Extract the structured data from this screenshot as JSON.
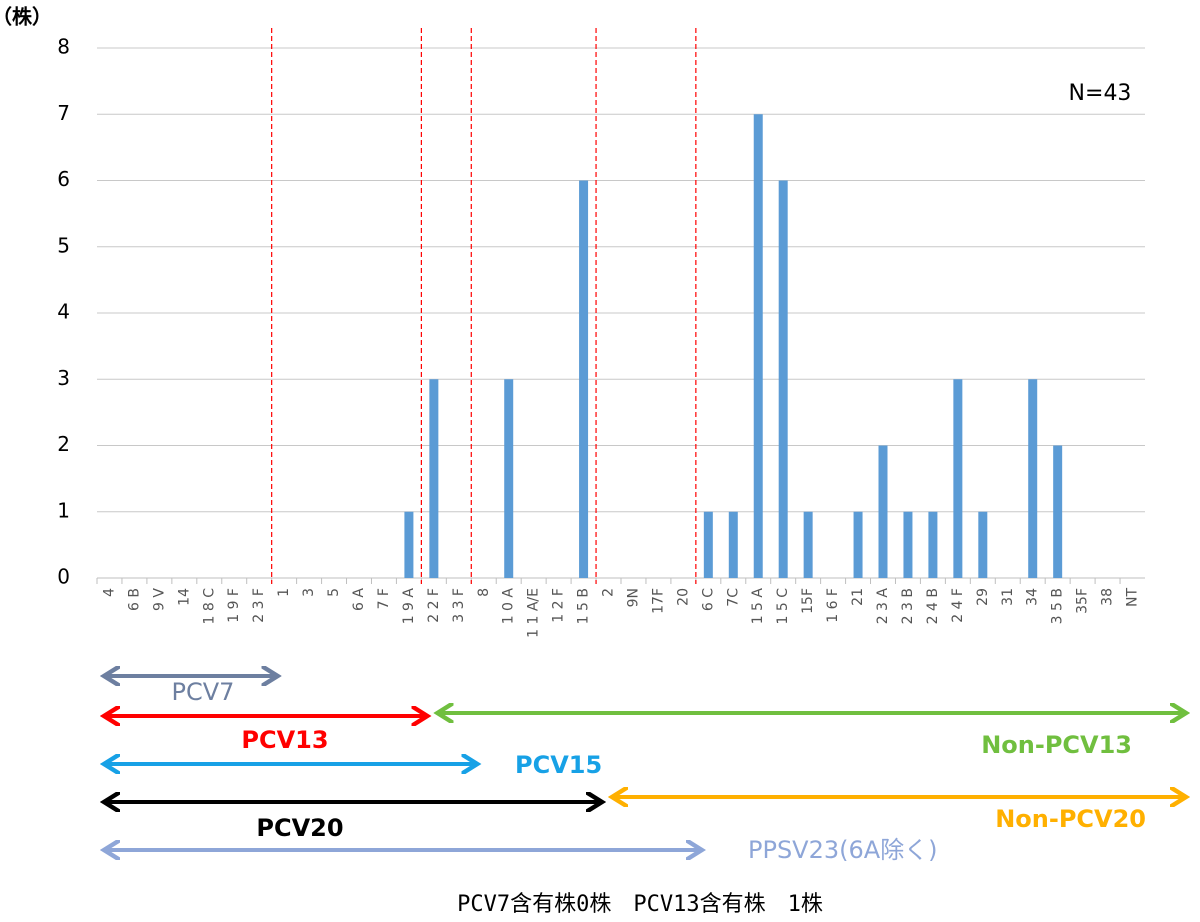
{
  "chart_data": {
    "type": "bar",
    "y_label": "（株）",
    "annotation": "N=43",
    "footer": "PCV7含有株0株　PCV13含有株　1株",
    "categories": [
      "4",
      "6 B",
      "9 V",
      "14",
      "1 8 C",
      "1 9 F",
      "2 3 F",
      "1",
      "3",
      "5",
      "6 A",
      "7 F",
      "1 9 A",
      "2 2 F",
      "3 3 F",
      "8",
      "1 0 A",
      "1 1 A/E",
      "1 2 F",
      "1 5 B",
      "2",
      "9N",
      "17F",
      "20",
      "6 C",
      "7C",
      "1 5 A",
      "1 5 C",
      "15F",
      "1 6 F",
      "21",
      "2 3 A",
      "2 3 B",
      "2 4 B",
      "2 4 F",
      "29",
      "31",
      "34",
      "3 5 B",
      "35F",
      "38",
      "NT"
    ],
    "values": [
      0,
      0,
      0,
      0,
      0,
      0,
      0,
      0,
      0,
      0,
      0,
      0,
      1,
      3,
      0,
      0,
      3,
      0,
      0,
      6,
      0,
      0,
      0,
      0,
      1,
      1,
      7,
      6,
      1,
      0,
      1,
      2,
      1,
      1,
      3,
      1,
      0,
      3,
      2,
      0,
      0,
      0
    ],
    "color": "#5b9bd5",
    "ylim": [
      0,
      8
    ],
    "yticks": [
      0,
      1,
      2,
      3,
      4,
      5,
      6,
      7,
      8
    ],
    "grid": true,
    "ranges": [
      {
        "label": "PCV7",
        "color": "#6d7fa0",
        "from": "4",
        "to": "2 3 F",
        "divider": true
      },
      {
        "label": "PCV13",
        "color": "#ff0000",
        "from": "4",
        "to": "1 9 A",
        "divider": true
      },
      {
        "label": "Non-PCV13",
        "color": "#70bf3f",
        "from": "2 2 F",
        "to": "NT",
        "divider": false
      },
      {
        "label": "PCV15",
        "color": "#17a1e6",
        "from": "4",
        "to": "3 3 F",
        "divider": true
      },
      {
        "label": "PCV20",
        "color": "#000000",
        "from": "4",
        "to": "1 5 B",
        "divider": true
      },
      {
        "label": "Non-PCV20",
        "color": "#ffb000",
        "from": "2",
        "to": "NT",
        "divider": false
      },
      {
        "label": "PPSV23(6A除く)",
        "color": "#8ea6d8",
        "from": "4",
        "to": "20",
        "divider": true
      }
    ]
  }
}
